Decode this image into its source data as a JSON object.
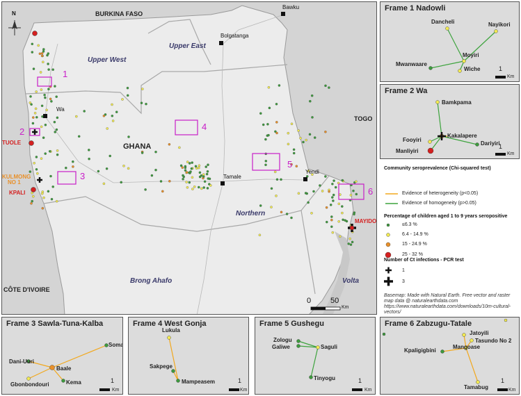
{
  "main_map": {
    "countries": {
      "burkina": "BURKINA FASO",
      "togo": "TOGO",
      "cote": "CÔTE D'IVOIRE",
      "ghana": "GHANA"
    },
    "regions": {
      "upper_west": "Upper West",
      "upper_east": "Upper East",
      "northern": "Northern",
      "brong_ahafo": "Brong Ahafo",
      "volta": "Volta"
    },
    "towns": {
      "bawku": "Bawku",
      "bolgatanga": "Bolgatanga",
      "wa": "Wa",
      "tamale": "Tamale",
      "yendi": "Yendi"
    },
    "highlighted": {
      "tuole": "TUOLE",
      "kulmong": "KULMONG",
      "kulmong_no": "NO 1",
      "kpali": "KPALI",
      "mayido": "MAYIDO"
    },
    "frame_numbers": [
      "1",
      "2",
      "3",
      "4",
      "5",
      "6"
    ],
    "scale": {
      "zero": "0",
      "fifty": "50",
      "unit": "Km"
    },
    "north": "N"
  },
  "frames": [
    {
      "title": "Frame 1 Nadowli",
      "villages": [
        "Dancheli",
        "Nayikori",
        "Moyiri",
        "Mwanwaare",
        "Wiche"
      ],
      "scale": "1",
      "unit": "Km"
    },
    {
      "title": "Frame 2 Wa",
      "villages": [
        "Bamkpama",
        "Fooyiri",
        "Kakalapere",
        "Dariyiri",
        "Manliyiri"
      ],
      "scale": "1",
      "unit": "Km"
    },
    {
      "title": "Frame 3 Sawla-Tuna-Kalba",
      "villages": [
        "Soma",
        "Dani-Uuri",
        "Baale",
        "Gbonbondouri",
        "Kema"
      ],
      "scale": "1",
      "unit": "Km"
    },
    {
      "title": "Frame 4 West Gonja",
      "villages": [
        "Lukula",
        "Sakpege",
        "Mampeasem"
      ],
      "scale": "1",
      "unit": "Km"
    },
    {
      "title": "Frame 5 Gushegu",
      "villages": [
        "Zologu",
        "Galiwe",
        "Saguli",
        "Tinyogu"
      ],
      "scale": "1",
      "unit": "Km"
    },
    {
      "title": "Frame 6 Zabzugu-Tatale",
      "villages": [
        "Jatoyili",
        "Tasundo No 2",
        "Kpaligigbini",
        "Mangoase",
        "Tamabug"
      ],
      "scale": "1",
      "unit": "Km"
    }
  ],
  "legend": {
    "test_title": "Community seroprevalence (Chi-squared test)",
    "heterogeneity": "Evidence of heterogeneity (p<0.05)",
    "homogeneity": "Evidence of homogeneity (p>0.05)",
    "pct_title": "Percentage of children aged 1 to 9 years seropositive",
    "classes": [
      "≤6.3 %",
      "6.4 - 14.9 %",
      "15 - 24.9 %",
      "25 - 32 %"
    ],
    "pcr_title": "Number of Ct infections - PCR test",
    "pcr_values": [
      "1",
      "3"
    ],
    "note": "Basemap: Made with Natural Earth. Free vector and raster map data @ naturalearthdata.com https://www.naturalearthdata.com/downloads/10m-cultural-vectors/"
  },
  "colors": {
    "land": "#d9d9d9",
    "ghana": "#ececec",
    "frame_box": "#c81ec8",
    "heterogeneity": "#f2a81d",
    "homogeneity": "#3da33d",
    "class1": "#3e9a3e",
    "class2": "#f2ea52",
    "class3": "#e8902a",
    "class4": "#d42020",
    "highlight_orange": "#e8902a",
    "highlight_red": "#d42020"
  }
}
